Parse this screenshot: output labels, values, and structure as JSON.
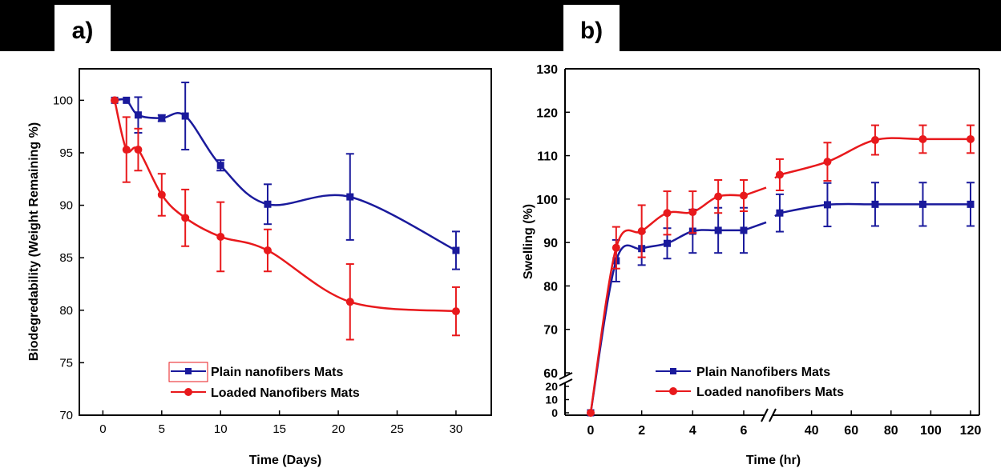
{
  "panels": {
    "a": {
      "label": "a)"
    },
    "b": {
      "label": "b)"
    }
  },
  "colors": {
    "blue": "#1a1a9c",
    "red": "#e8191c",
    "frame": "#000000"
  },
  "chart_data": [
    {
      "id": "a",
      "type": "line",
      "xlabel": "Time (Days)",
      "ylabel": "Biodegredability (Weight Remaining %)",
      "xlim": [
        -2,
        33
      ],
      "ylim": [
        70,
        103
      ],
      "x_ticks": [
        0,
        5,
        10,
        15,
        20,
        25,
        30
      ],
      "y_ticks": [
        70,
        75,
        80,
        85,
        90,
        95,
        100
      ],
      "legend": {
        "placement": "bottom-center"
      },
      "series": [
        {
          "name": "Plain nanofibers Mats",
          "color": "#1a1a9c",
          "marker": "square",
          "x": [
            1,
            2,
            3,
            5,
            7,
            10,
            14,
            21,
            30
          ],
          "y": [
            100,
            100,
            98.6,
            98.3,
            98.5,
            93.8,
            90.1,
            90.8,
            85.7
          ],
          "error": [
            0,
            0,
            1.7,
            0.3,
            3.2,
            0.5,
            1.9,
            4.1,
            1.8
          ]
        },
        {
          "name": "Loaded Nanofibers Mats",
          "color": "#e8191c",
          "marker": "circle",
          "x": [
            1,
            2,
            3,
            5,
            7,
            10,
            14,
            21,
            30
          ],
          "y": [
            100,
            95.3,
            95.3,
            91.0,
            88.8,
            87.0,
            85.7,
            80.8,
            79.9
          ],
          "error": [
            0,
            3.1,
            2.0,
            2.0,
            2.7,
            3.3,
            2.0,
            3.6,
            2.3
          ]
        }
      ]
    },
    {
      "id": "b",
      "type": "line",
      "xlabel": "Time (hr)",
      "ylabel": "Swelling (%)",
      "x_axis_break": "between 6 and 20",
      "y_axis_break": "between 20 and 60",
      "x_ticks_lower": [
        0,
        2,
        4,
        6
      ],
      "x_ticks_upper": [
        40,
        60,
        80,
        100,
        120
      ],
      "y_ticks_lower": [
        0,
        10,
        20
      ],
      "y_ticks_upper": [
        60,
        70,
        80,
        90,
        100,
        110,
        120,
        130
      ],
      "legend": {
        "placement": "bottom-center"
      },
      "series": [
        {
          "name": "Plain Nanofibers Mats",
          "color": "#1a1a9c",
          "marker": "square",
          "x": [
            0,
            1,
            2,
            3,
            4,
            5,
            6,
            24,
            48,
            72,
            96,
            120
          ],
          "y": [
            0,
            85.8,
            88.6,
            89.8,
            92.6,
            92.8,
            92.8,
            96.8,
            98.7,
            98.8,
            98.8,
            98.8
          ],
          "error": [
            0,
            4.8,
            3.8,
            3.5,
            5.0,
            5.2,
            5.2,
            4.3,
            5.0,
            5.0,
            5.0,
            5.0
          ]
        },
        {
          "name": "Loaded nanofibers Mats",
          "color": "#e8191c",
          "marker": "circle",
          "x": [
            0,
            1,
            2,
            3,
            4,
            5,
            6,
            24,
            48,
            72,
            96,
            120
          ],
          "y": [
            0,
            88.8,
            92.6,
            96.8,
            97.0,
            100.6,
            100.8,
            105.6,
            108.6,
            113.6,
            113.8,
            113.8
          ],
          "error": [
            0,
            4.8,
            6.0,
            5.0,
            4.8,
            3.8,
            3.6,
            3.6,
            4.4,
            3.4,
            3.2,
            3.2
          ]
        }
      ]
    }
  ]
}
